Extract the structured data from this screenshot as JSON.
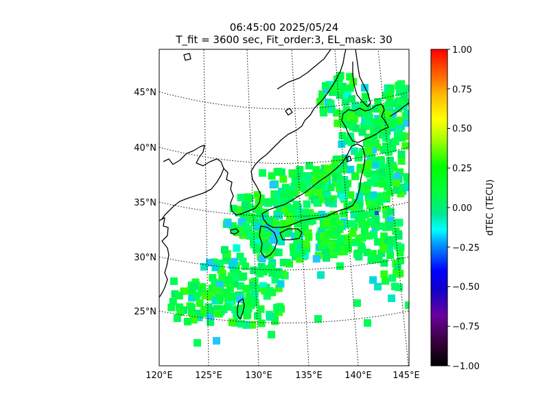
{
  "title": {
    "line1": "06:45:00 2025/05/24",
    "line2": "T_fit = 3600 sec, Fit_order:3, EL_mask: 30"
  },
  "map": {
    "lon_range": [
      120,
      145
    ],
    "lat_range": [
      20,
      48
    ],
    "meridians": [
      120,
      125,
      130,
      135,
      140,
      145
    ],
    "parallels": [
      25,
      30,
      35,
      40,
      45
    ],
    "lon_labels": [
      "120°E",
      "125°E",
      "130°E",
      "135°E",
      "140°E",
      "145°E"
    ],
    "lat_labels": [
      "25°N",
      "30°N",
      "35°N",
      "40°N",
      "45°N"
    ],
    "coastline_color": "#000000",
    "gridline_style": "dotted"
  },
  "colorbar": {
    "label": "dTEC (TECU)",
    "min": -1.0,
    "max": 1.0,
    "tick_labels": [
      "1.00",
      "0.75",
      "0.50",
      "0.25",
      "0.00",
      "−0.25",
      "−0.50",
      "−0.75",
      "−1.00"
    ],
    "colormap": "nipy_spectral-like: black, purple, blue, cyan, green, yellow, orange, red"
  },
  "data_summary": {
    "dominant_value_range": [
      -0.15,
      0.15
    ],
    "dominant_color": "#00ff55",
    "cyan_patches_color": "#00e8c0",
    "blue_outlier_color": "#3040ff"
  }
}
